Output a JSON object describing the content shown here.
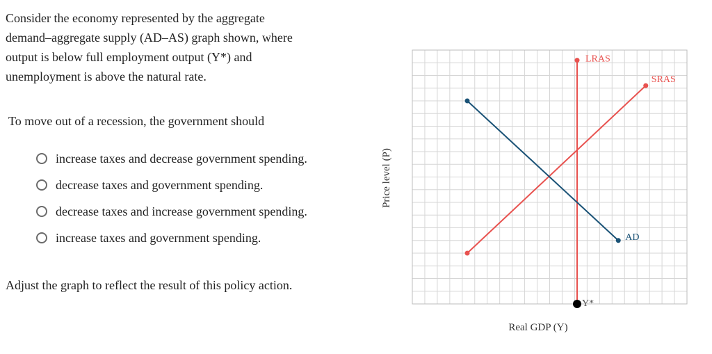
{
  "prompt": {
    "line1": "Consider the economy represented by the aggregate",
    "line2": "demand–aggregate supply (AD–AS) graph shown, where",
    "line3": "output is below full employment output (Y*) and",
    "line4": "unemployment is above the natural rate."
  },
  "question": "To move out of a recession, the government should",
  "options": [
    "increase taxes and decrease government spending.",
    "decrease taxes and government spending.",
    "decrease taxes and increase government spending.",
    "increase taxes and government spending."
  ],
  "instruction": "Adjust the graph to reflect the result of this policy action.",
  "colors": {
    "ad": "#1a5276",
    "supply": "#e8524f",
    "grid": "#d6d6d6",
    "marker": "#000000"
  },
  "chart_data": {
    "type": "line",
    "xlabel": "Real GDP (Y)",
    "ylabel": "Price level (P)",
    "grid": true,
    "xlim": [
      0,
      10
    ],
    "ylim": [
      0,
      10
    ],
    "series": [
      {
        "name": "LRAS",
        "points": [
          [
            6,
            9.6
          ],
          [
            6,
            0
          ]
        ]
      },
      {
        "name": "SRAS",
        "points": [
          [
            2,
            2
          ],
          [
            8.5,
            8.6
          ]
        ]
      },
      {
        "name": "AD",
        "points": [
          [
            2,
            8.0
          ],
          [
            7.5,
            2.5
          ]
        ]
      }
    ],
    "markers": [
      {
        "label": "Y*",
        "x": 6,
        "y": 0
      }
    ]
  }
}
